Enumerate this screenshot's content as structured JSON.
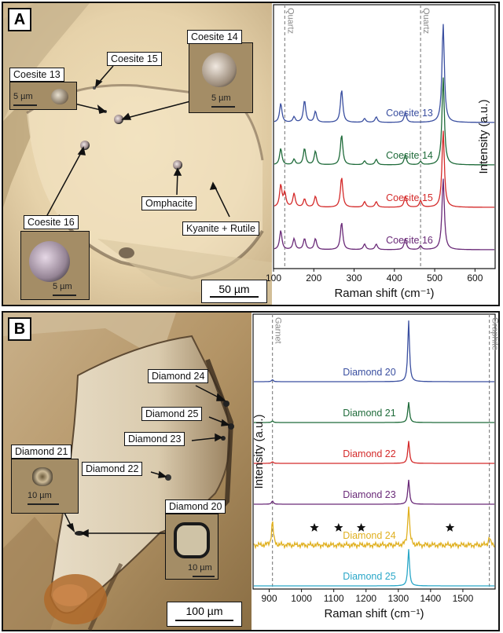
{
  "panel_a": {
    "letter": "A",
    "labels": {
      "coesite13": "Coesite 13",
      "coesite14": "Coesite 14",
      "coesite15": "Coesite 15",
      "coesite16": "Coesite 16",
      "omphacite": "Omphacite",
      "kyanite": "Kyanite + Rutile"
    },
    "inset_scales": {
      "c13": "5 µm",
      "c14": "5 µm",
      "c16": "5 µm"
    },
    "scale_bar": "50 µm"
  },
  "panel_b": {
    "letter": "B",
    "labels": {
      "d20": "Diamond 20",
      "d21": "Diamond 21",
      "d22": "Diamond 22",
      "d23": "Diamond 23",
      "d24": "Diamond 24",
      "d25": "Diamond 25"
    },
    "inset_scales": {
      "d21": "10 µm",
      "d20": "10 µm"
    },
    "scale_bar": "100 µm"
  },
  "chart_data": [
    {
      "type": "line",
      "xlabel": "Raman shift (cm⁻¹)",
      "ylabel": "Intensity (a.u.)",
      "xlim": [
        100,
        650
      ],
      "xticks": [
        100,
        200,
        300,
        400,
        500,
        600
      ],
      "reference_lines": [
        {
          "label": "Quartz",
          "x": 128
        },
        {
          "label": "Quartz",
          "x": 465
        }
      ],
      "series": [
        {
          "name": "Coesite 13",
          "color": "#3a4fa0",
          "peaks": [
            [
              118,
              0.35
            ],
            [
              151,
              0.1
            ],
            [
              177,
              0.4
            ],
            [
              204,
              0.2
            ],
            [
              269,
              0.6
            ],
            [
              326,
              0.07
            ],
            [
              355,
              0.1
            ],
            [
              427,
              0.18
            ],
            [
              521,
              1.8
            ]
          ]
        },
        {
          "name": "Coesite 14",
          "color": "#1f6b3a",
          "peaks": [
            [
              118,
              0.3
            ],
            [
              151,
              0.1
            ],
            [
              177,
              0.3
            ],
            [
              204,
              0.25
            ],
            [
              269,
              0.55
            ],
            [
              326,
              0.07
            ],
            [
              355,
              0.1
            ],
            [
              427,
              0.18
            ],
            [
              465,
              0.06
            ],
            [
              521,
              1.6
            ]
          ]
        },
        {
          "name": "Coesite 15",
          "color": "#d42a2a",
          "peaks": [
            [
              118,
              0.4
            ],
            [
              128,
              0.25
            ],
            [
              151,
              0.25
            ],
            [
              177,
              0.15
            ],
            [
              204,
              0.2
            ],
            [
              269,
              0.55
            ],
            [
              326,
              0.1
            ],
            [
              355,
              0.1
            ],
            [
              427,
              0.2
            ],
            [
              465,
              0.12
            ],
            [
              521,
              1.4
            ]
          ]
        },
        {
          "name": "Coesite 16",
          "color": "#6a2a78",
          "peaks": [
            [
              118,
              0.35
            ],
            [
              151,
              0.2
            ],
            [
              177,
              0.2
            ],
            [
              204,
              0.2
            ],
            [
              269,
              0.5
            ],
            [
              326,
              0.1
            ],
            [
              355,
              0.1
            ],
            [
              427,
              0.2
            ],
            [
              465,
              0.07
            ],
            [
              521,
              1.3
            ]
          ]
        }
      ]
    },
    {
      "type": "line",
      "xlabel": "Raman shift (cm⁻¹)",
      "ylabel": "Intensity (a.u.)",
      "xlim": [
        850,
        1600
      ],
      "xticks": [
        900,
        1000,
        1100,
        1200,
        1300,
        1400,
        1500
      ],
      "reference_lines": [
        {
          "label": "Garnet",
          "x": 910
        },
        {
          "label": "Graphite",
          "x": 1582
        }
      ],
      "series": [
        {
          "name": "Diamond 20",
          "color": "#3a4fa0",
          "peaks": [
            [
              910,
              0.05
            ],
            [
              1332,
              1.5
            ]
          ]
        },
        {
          "name": "Diamond 21",
          "color": "#1f6b3a",
          "peaks": [
            [
              910,
              0.04
            ],
            [
              1332,
              0.5
            ]
          ]
        },
        {
          "name": "Diamond 22",
          "color": "#d42a2a",
          "peaks": [
            [
              910,
              0.04
            ],
            [
              1332,
              0.55
            ]
          ]
        },
        {
          "name": "Diamond 23",
          "color": "#6a2a78",
          "peaks": [
            [
              910,
              0.08
            ],
            [
              1332,
              0.6
            ]
          ]
        },
        {
          "name": "Diamond 24",
          "color": "#e0b020",
          "peaks": [
            [
              910,
              0.6
            ],
            [
              1332,
              1.0
            ],
            [
              1582,
              0.2
            ]
          ]
        },
        {
          "name": "Diamond 25",
          "color": "#2aa7c8",
          "peaks": [
            [
              1332,
              0.9
            ]
          ]
        }
      ],
      "star_markers_x": [
        1040,
        1115,
        1185,
        1460
      ]
    }
  ]
}
